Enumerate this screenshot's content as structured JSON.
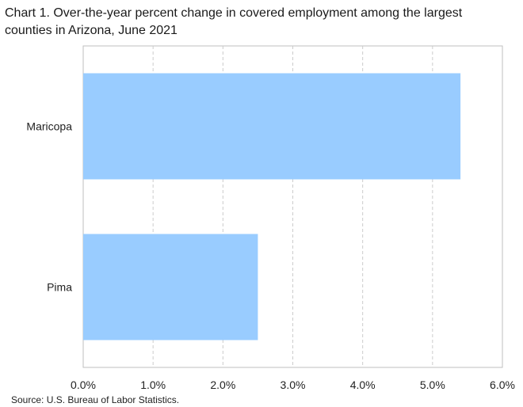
{
  "chart_data": {
    "type": "bar",
    "orientation": "horizontal",
    "title": "Chart 1. Over-the-year percent change in covered employment among the largest counties in Arizona, June 2021",
    "categories": [
      "Maricopa",
      "Pima"
    ],
    "values": [
      5.4,
      2.5
    ],
    "xlabel": "",
    "ylabel": "",
    "xlim": [
      0,
      6
    ],
    "x_ticks": [
      0,
      1,
      2,
      3,
      4,
      5,
      6
    ],
    "x_tick_labels": [
      "0.0%",
      "1.0%",
      "2.0%",
      "3.0%",
      "4.0%",
      "5.0%",
      "6.0%"
    ],
    "grid": "vertical dashed",
    "legend": "none",
    "bar_color": "#99CCFF",
    "source": "Source: U.S. Bureau of Labor Statistics."
  }
}
